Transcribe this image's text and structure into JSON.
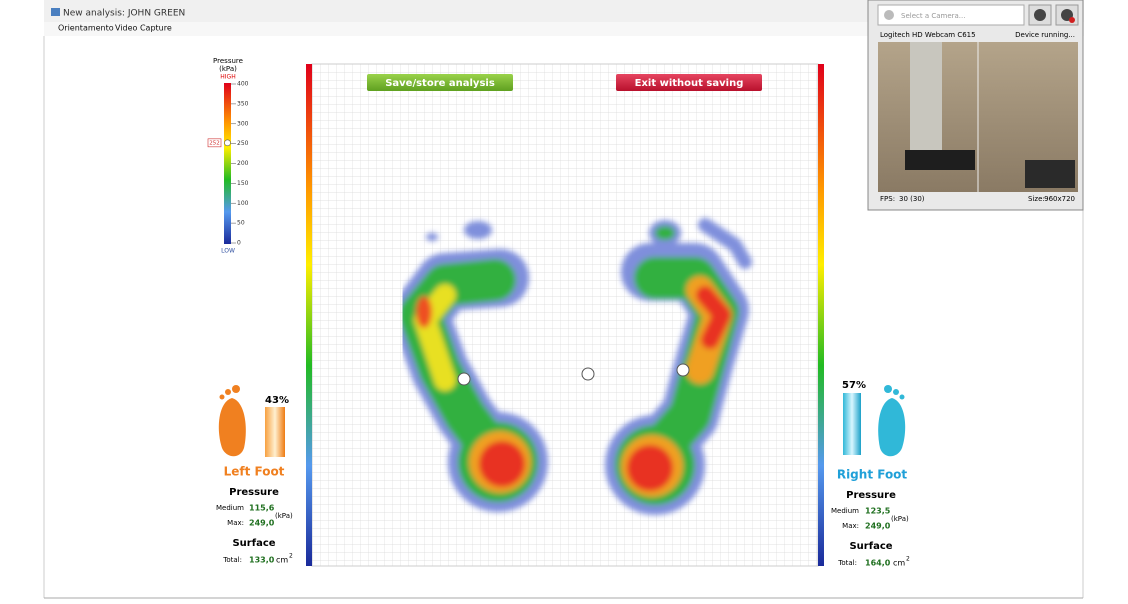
{
  "window": {
    "title": "New analysis: JOHN  GREEN"
  },
  "menu": [
    "Orientamento",
    "Video Capture"
  ],
  "buttons": {
    "save": "Save/store analysis",
    "exit": "Exit without saving"
  },
  "pressure_scale": {
    "title": "Pressure",
    "unit": "(kPa)",
    "high": "HIGH",
    "low": "LOW",
    "range": [
      0,
      400
    ],
    "ticks": [
      400,
      350,
      300,
      250,
      200,
      150,
      100,
      50,
      0
    ],
    "marker": 252
  },
  "left_foot": {
    "percent": "43%",
    "name": "Left Foot",
    "pressure_title": "Pressure",
    "medium_label": "Medium",
    "medium": "115,6",
    "max_label": "Max:",
    "max": "249,0",
    "pressure_unit": "(kPa)",
    "surface_title": "Surface",
    "total_label": "Total:",
    "total": "133,0",
    "surface_unit": "cm",
    "surface_exp": "2"
  },
  "right_foot": {
    "percent": "57%",
    "name": "Right Foot",
    "pressure_title": "Pressure",
    "medium_label": "Medium",
    "medium": "123,5",
    "max_label": "Max:",
    "max": "249,0",
    "pressure_unit": "(kPa)",
    "surface_title": "Surface",
    "total_label": "Total:",
    "total": "164,0",
    "surface_unit": "cm",
    "surface_exp": "2"
  },
  "camera": {
    "select": "Select a Camera...",
    "device": "Logitech HD Webcam C615",
    "status": "Device running...",
    "fps_label": "FPS:",
    "fps": "30 (30)",
    "size_label": "Size:",
    "size": "960x720"
  }
}
